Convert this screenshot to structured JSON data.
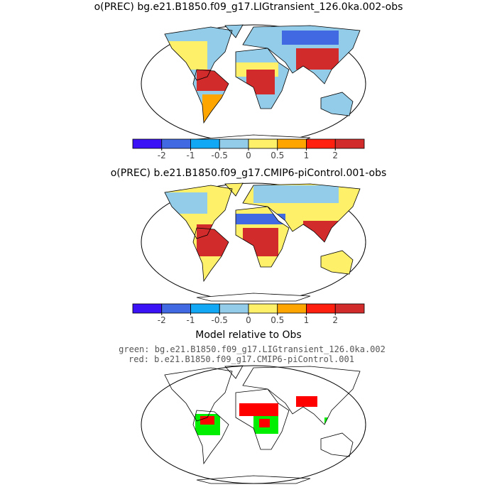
{
  "panels": [
    {
      "title": "o(PREC) bg.e21.B1850.f09_g17.LIGtransient_126.0ka.002-obs"
    },
    {
      "title": "o(PREC) b.e21.B1850.f09_g17.CMIP6-piControl.001-obs"
    }
  ],
  "colorbar": {
    "colors": [
      "#3b12f5",
      "#4169e1",
      "#12a8f5",
      "#93cce8",
      "#fff06a",
      "#ffa500",
      "#ff2010",
      "#d22b2b"
    ],
    "ticks": [
      -2,
      -1,
      -0.5,
      0,
      0.5,
      1,
      2
    ]
  },
  "comparison": {
    "title": "Model relative to Obs",
    "green": "green: bg.e21.B1850.f09_g17.LIGtransient_126.0ka.002",
    "red": "red: b.e21.B1850.f09_g17.CMIP6-piControl.001"
  }
}
